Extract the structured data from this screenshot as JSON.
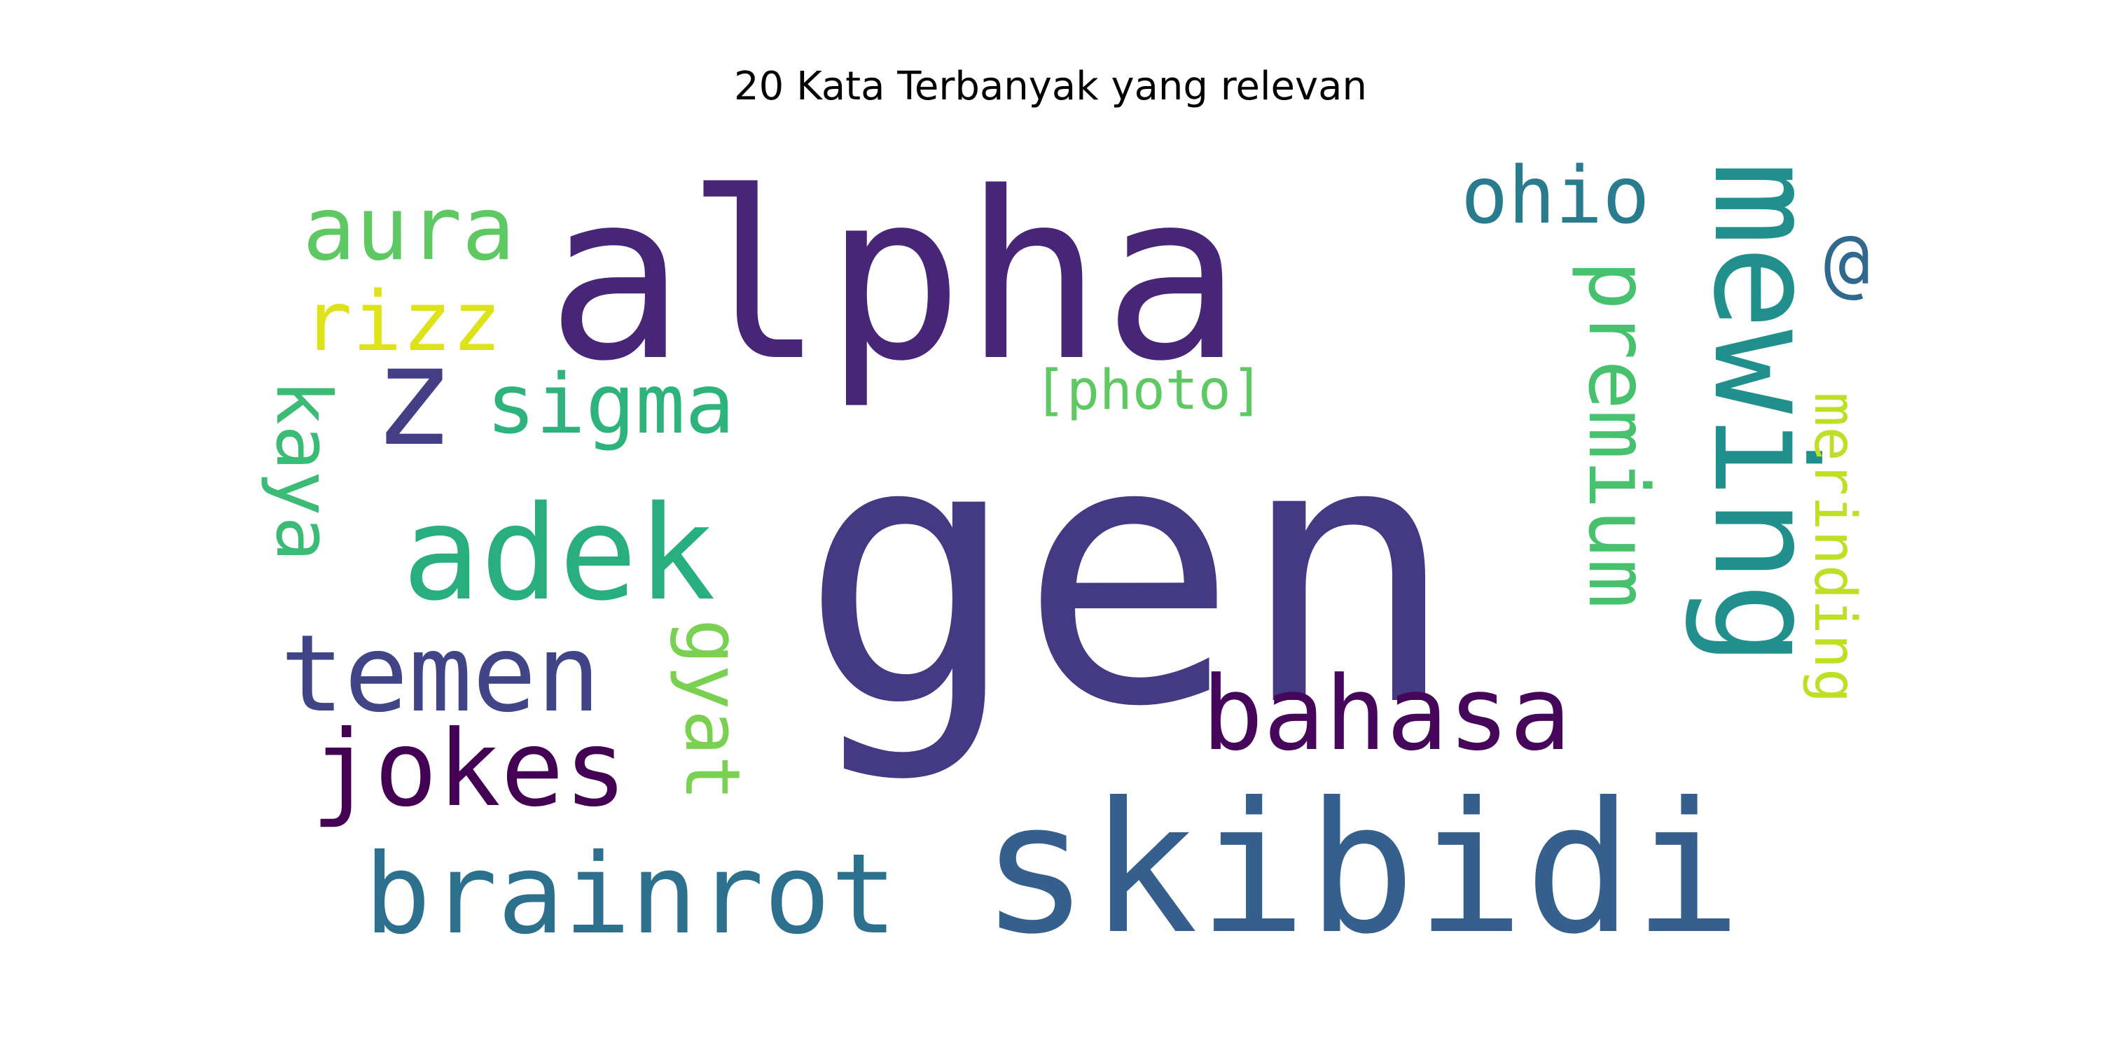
{
  "chart_data": {
    "type": "wordcloud",
    "title": "20 Kata Terbanyak yang relevan",
    "words": [
      {
        "text": "gen",
        "color": "#443983"
      },
      {
        "text": "alpha",
        "color": "#482677"
      },
      {
        "text": "skibidi",
        "color": "#355f8d"
      },
      {
        "text": "mewing",
        "color": "#21908d"
      },
      {
        "text": "adek",
        "color": "#29af7f"
      },
      {
        "text": "z",
        "color": "#433e85"
      },
      {
        "text": "brainrot",
        "color": "#2d708e"
      },
      {
        "text": "temen",
        "color": "#414487"
      },
      {
        "text": "jokes",
        "color": "#440154"
      },
      {
        "text": "bahasa",
        "color": "#46075a"
      },
      {
        "text": "sigma",
        "color": "#2eb37c"
      },
      {
        "text": "aura",
        "color": "#5ec962"
      },
      {
        "text": "premium",
        "color": "#48c16e"
      },
      {
        "text": "rizz",
        "color": "#dde318"
      },
      {
        "text": "ohio",
        "color": "#287c8e"
      },
      {
        "text": "gyat",
        "color": "#7ad151"
      },
      {
        "text": "kaya",
        "color": "#3bbb75"
      },
      {
        "text": "@",
        "color": "#31688e"
      },
      {
        "text": "merinding",
        "color": "#bddf26"
      },
      {
        "text": "[photo]",
        "color": "#5ec962"
      }
    ]
  }
}
